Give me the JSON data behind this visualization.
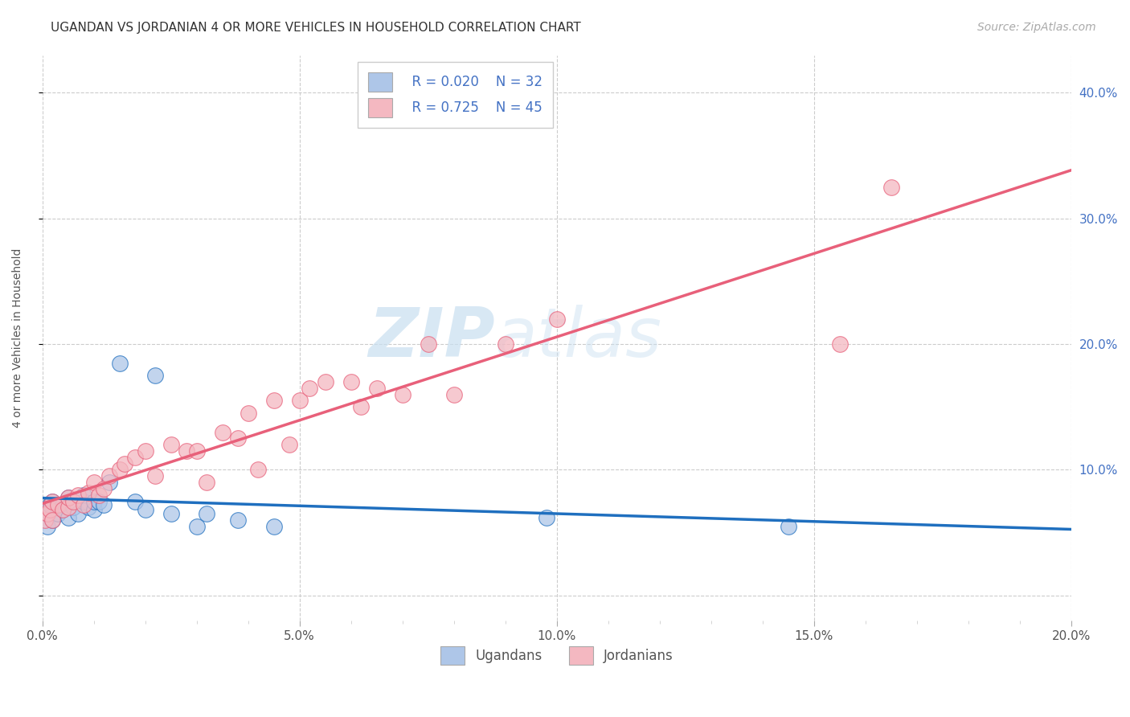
{
  "title": "UGANDAN VS JORDANIAN 4 OR MORE VEHICLES IN HOUSEHOLD CORRELATION CHART",
  "source": "Source: ZipAtlas.com",
  "ylabel": "4 or more Vehicles in Household",
  "ugandan_color": "#aec6e8",
  "jordanian_color": "#f4b8c1",
  "ugandan_line_color": "#1f6fbf",
  "jordanian_line_color": "#e8607a",
  "legend_R_ugandan": "R = 0.020",
  "legend_N_ugandan": "N = 32",
  "legend_R_jordanian": "R = 0.725",
  "legend_N_jordanian": "N = 45",
  "watermark_zip": "ZIP",
  "watermark_atlas": "atlas",
  "xlim": [
    0.0,
    0.2
  ],
  "ylim": [
    -0.02,
    0.43
  ],
  "ugandan_x": [
    0.0005,
    0.001,
    0.0015,
    0.002,
    0.002,
    0.003,
    0.003,
    0.004,
    0.004,
    0.005,
    0.005,
    0.006,
    0.007,
    0.008,
    0.008,
    0.009,
    0.01,
    0.01,
    0.011,
    0.012,
    0.013,
    0.015,
    0.018,
    0.02,
    0.022,
    0.025,
    0.03,
    0.032,
    0.038,
    0.045,
    0.098,
    0.145
  ],
  "ugandan_y": [
    0.068,
    0.055,
    0.072,
    0.06,
    0.075,
    0.065,
    0.07,
    0.072,
    0.068,
    0.062,
    0.078,
    0.07,
    0.065,
    0.075,
    0.08,
    0.07,
    0.068,
    0.075,
    0.075,
    0.072,
    0.09,
    0.185,
    0.075,
    0.068,
    0.175,
    0.065,
    0.055,
    0.065,
    0.06,
    0.055,
    0.062,
    0.055
  ],
  "jordanian_x": [
    0.0005,
    0.001,
    0.0015,
    0.002,
    0.002,
    0.003,
    0.004,
    0.005,
    0.005,
    0.006,
    0.007,
    0.008,
    0.009,
    0.01,
    0.011,
    0.012,
    0.013,
    0.015,
    0.016,
    0.018,
    0.02,
    0.022,
    0.025,
    0.028,
    0.03,
    0.032,
    0.035,
    0.038,
    0.04,
    0.042,
    0.045,
    0.048,
    0.05,
    0.052,
    0.055,
    0.06,
    0.062,
    0.065,
    0.07,
    0.075,
    0.08,
    0.09,
    0.1,
    0.155,
    0.165
  ],
  "jordanian_y": [
    0.06,
    0.065,
    0.068,
    0.06,
    0.075,
    0.072,
    0.068,
    0.07,
    0.078,
    0.075,
    0.08,
    0.072,
    0.082,
    0.09,
    0.08,
    0.085,
    0.095,
    0.1,
    0.105,
    0.11,
    0.115,
    0.095,
    0.12,
    0.115,
    0.115,
    0.09,
    0.13,
    0.125,
    0.145,
    0.1,
    0.155,
    0.12,
    0.155,
    0.165,
    0.17,
    0.17,
    0.15,
    0.165,
    0.16,
    0.2,
    0.16,
    0.2,
    0.22,
    0.2,
    0.325
  ],
  "title_fontsize": 11,
  "axis_label_fontsize": 10,
  "tick_fontsize": 11,
  "source_fontsize": 10
}
